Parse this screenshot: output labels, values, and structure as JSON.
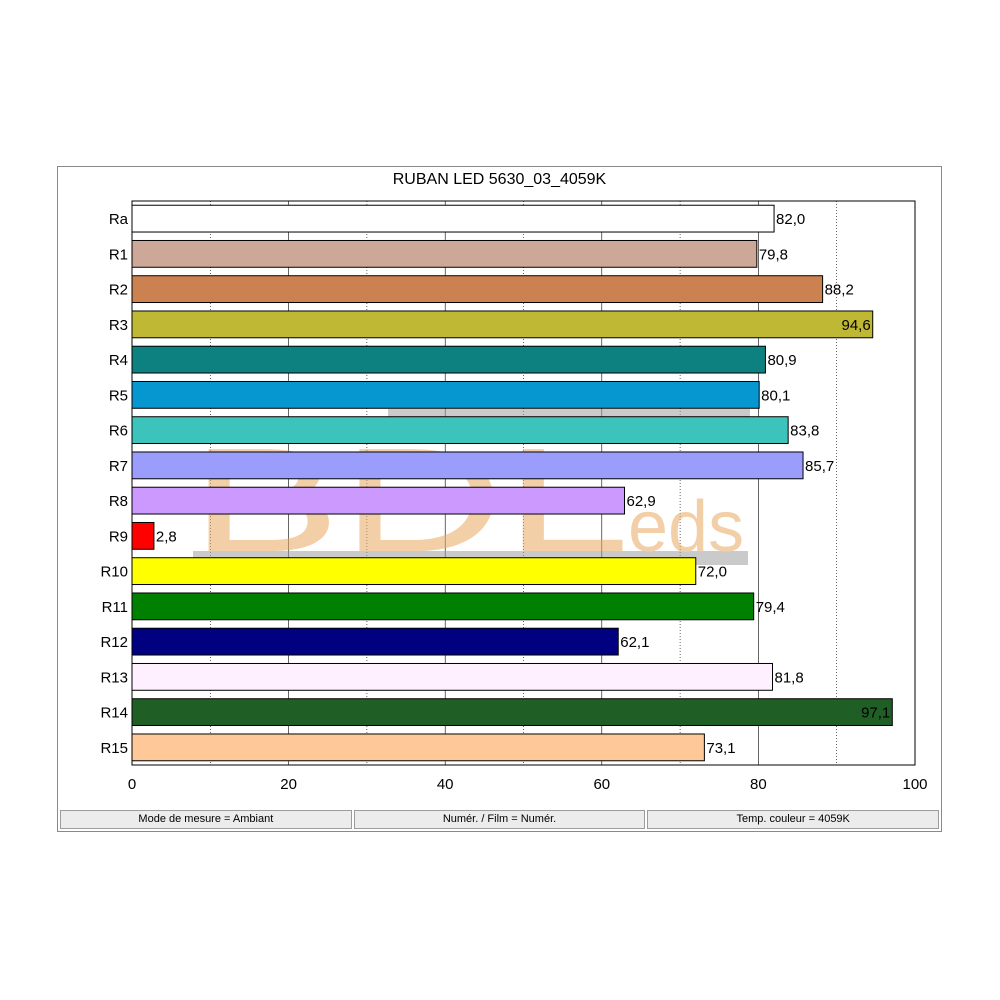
{
  "chart_data": {
    "type": "bar",
    "orientation": "horizontal",
    "title": "RUBAN LED 5630_03_4059K",
    "categories": [
      "Ra",
      "R1",
      "R2",
      "R3",
      "R4",
      "R5",
      "R6",
      "R7",
      "R8",
      "R9",
      "R10",
      "R11",
      "R12",
      "R13",
      "R14",
      "R15"
    ],
    "values": [
      82.0,
      79.8,
      88.2,
      94.6,
      80.9,
      80.1,
      83.8,
      85.7,
      62.9,
      2.8,
      72.0,
      79.4,
      62.1,
      81.8,
      97.1,
      73.1
    ],
    "value_labels": [
      "82,0",
      "79,8",
      "88,2",
      "94,6",
      "80,9",
      "80,1",
      "83,8",
      "85,7",
      "62,9",
      "2,8",
      "72,0",
      "79,4",
      "62,1",
      "81,8",
      "97,1",
      "73,1"
    ],
    "colors": [
      "#ffffff",
      "#cda898",
      "#cc8150",
      "#bfb834",
      "#0d8080",
      "#0797d0",
      "#3cc3bc",
      "#9b9dfd",
      "#cc99ff",
      "#ff0000",
      "#ffff00",
      "#008000",
      "#000080",
      "#fff0ff",
      "#1f5f25",
      "#ffc898"
    ],
    "xlim": [
      0,
      100
    ],
    "x_ticks": [
      0,
      20,
      40,
      60,
      80,
      100
    ],
    "x_tick_labels": [
      "0",
      "20",
      "40",
      "60",
      "80",
      "100"
    ],
    "grid": true,
    "grid_style": "dotted-and-solid-vertical",
    "label_inside_for": [
      "R3",
      "R14"
    ]
  },
  "status_bar": {
    "mode": "Mode de mesure = Ambiant",
    "film": "Numér. / Film = Numér.",
    "temp": "Temp. couleur = 4059K"
  },
  "watermark": {
    "text_big": "BDL",
    "text_small": "eds"
  }
}
